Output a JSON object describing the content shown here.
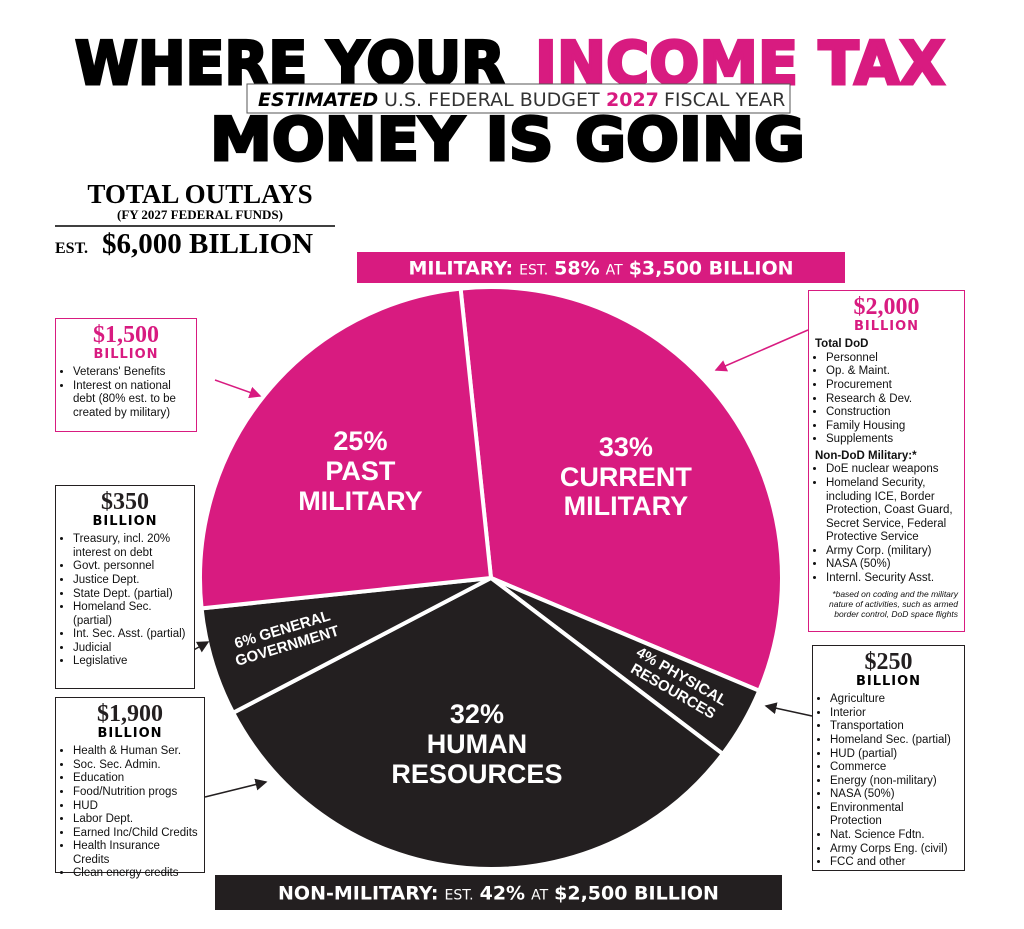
{
  "chart_data": {
    "type": "pie",
    "title": {
      "line1a": "WHERE YOUR",
      "line1b": "INCOME TAX",
      "line2": "MONEY IS GOING"
    },
    "subtitle": {
      "a": "ESTIMATED",
      "b": "U.S. FEDERAL BUDGET",
      "c": "2027",
      "d": "FISCAL YEAR"
    },
    "total": {
      "heading": "TOTAL OUTLAYS",
      "sub": "(FY 2027 FEDERAL FUNDS)",
      "est": "EST.",
      "amount": "$6,000 BILLION"
    },
    "categories": [
      "CURRENT MILITARY",
      "PHYSICAL RESOURCES",
      "HUMAN RESOURCES",
      "GENERAL GOVERNMENT",
      "PAST MILITARY"
    ],
    "values": [
      33,
      4,
      32,
      6,
      25
    ],
    "value_labels": [
      "33%",
      "4%",
      "32%",
      "6%",
      "25%"
    ],
    "colors": [
      "#d81b80",
      "#231f20",
      "#231f20",
      "#231f20",
      "#d81b80"
    ],
    "start_angle": -6,
    "banners": [
      {
        "lead": "MILITARY:",
        "est": "EST.",
        "pct": "58%",
        "at": "AT",
        "amount": "$3,500 BILLION",
        "color": "#d81b80"
      },
      {
        "lead": "NON-MILITARY:",
        "est": "EST.",
        "pct": "42%",
        "at": "AT",
        "amount": "$2,500 BILLION",
        "color": "#231f20"
      }
    ],
    "callouts": [
      {
        "amount": "$1,500",
        "unit": "BILLION",
        "color": "#d81b80",
        "groups": [
          {
            "items": [
              "Veterans' Benefits",
              "Interest on national debt (80% est. to be created by military)"
            ]
          }
        ]
      },
      {
        "amount": "$350",
        "unit": "BILLION",
        "color": "#231f20",
        "groups": [
          {
            "items": [
              "Treasury, incl. 20% interest on debt",
              "Govt. personnel",
              "Justice Dept.",
              "State Dept. (partial)",
              "Homeland Sec. (partial)",
              "Int. Sec. Asst. (partial)",
              "Judicial",
              "Legislative"
            ]
          }
        ]
      },
      {
        "amount": "$1,900",
        "unit": "BILLION",
        "color": "#231f20",
        "groups": [
          {
            "items": [
              "Health & Human Ser.",
              "Soc. Sec. Admin.",
              "Education",
              "Food/Nutrition progs",
              "HUD",
              "Labor Dept.",
              "Earned Inc/Child Credits",
              "Health Insurance Credits",
              "Clean energy credits"
            ]
          }
        ]
      },
      {
        "amount": "$2,000",
        "unit": "BILLION",
        "color": "#d81b80",
        "groups": [
          {
            "heading": "Total DoD",
            "items": [
              "Personnel",
              "Op. & Maint.",
              "Procurement",
              "Research & Dev.",
              "Construction",
              "Family Housing",
              "Supplements"
            ]
          },
          {
            "heading": "Non-DoD Military:*",
            "items": [
              "DoE nuclear weapons",
              "Homeland Security, including ICE, Border Protection, Coast Guard, Secret Service, Federal Protective Service",
              "Army Corp. (military)",
              "NASA (50%)",
              "Internl. Security Asst."
            ]
          }
        ],
        "note": "*based on coding and the military nature of activities, such as armed border control, DoD space flights"
      },
      {
        "amount": "$250",
        "unit": "BILLION",
        "color": "#231f20",
        "groups": [
          {
            "items": [
              "Agriculture",
              "Interior",
              "Transportation",
              "Homeland Sec. (partial)",
              "HUD (partial)",
              "Commerce",
              "Energy (non-military)",
              "NASA (50%)",
              "Environmental Protection",
              "Nat. Science Fdtn.",
              "Army Corps Eng. (civil)",
              "FCC and other"
            ]
          }
        ]
      }
    ]
  }
}
